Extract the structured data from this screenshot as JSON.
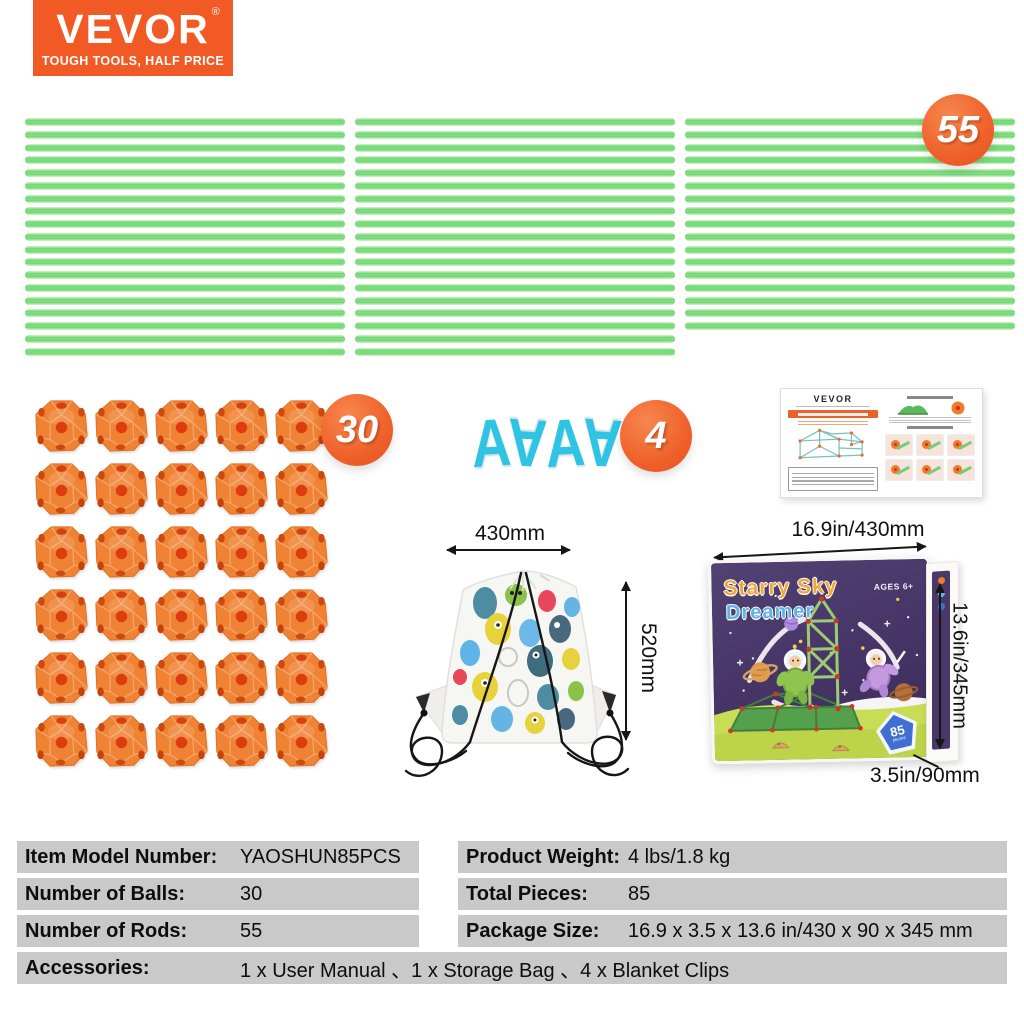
{
  "logo": {
    "brand": "VEVOR",
    "registered": "®",
    "tagline": "TOUGH TOOLS, HALF PRICE"
  },
  "rods_section": {
    "count_badge": "55",
    "columns": [
      19,
      19,
      17
    ]
  },
  "balls_section": {
    "count_badge": "30",
    "rows": 6,
    "cols": 5
  },
  "clips_section": {
    "count_badge": "4",
    "count": 4
  },
  "manual": {
    "brand": "VEVOR"
  },
  "bag": {
    "width_label": "430mm",
    "height_label": "520mm"
  },
  "box": {
    "title_line1": "Starry Sky",
    "title_line2": "Dreamer",
    "ages_label": "AGES 6+",
    "pieces_count": "85",
    "pieces_word": "pieces",
    "width_label": "16.9in/430mm",
    "height_label": "13.6in/345mm",
    "depth_label": "3.5in/90mm"
  },
  "specs_table": {
    "left_rows": [
      {
        "label": "Item Model Number:",
        "value": "YAOSHUN85PCS"
      },
      {
        "label": "Number of Balls:",
        "value": "30"
      },
      {
        "label": "Number of Rods:",
        "value": "55"
      }
    ],
    "right_rows": [
      {
        "label": "Product Weight:",
        "value": "4 lbs/1.8 kg"
      },
      {
        "label": "Total Pieces:",
        "value": "85"
      },
      {
        "label": "Package Size:",
        "value": "16.9 x 3.5 x 13.6 in/430 x 90 x 345 mm"
      }
    ],
    "accessories_row": {
      "label": "Accessories:",
      "value": "1 x User Manual 、1 x Storage Bag 、4 x Blanket Clips"
    }
  },
  "colors": {
    "brand_orange": "#f15a24",
    "badge_orange": "#ef6029",
    "rod_green": "#7edc7e",
    "ball_orange": "#ef8233",
    "clip_cyan": "#2fc4e4",
    "box_purple": "#453465",
    "table_gray": "#c9c9c9"
  }
}
